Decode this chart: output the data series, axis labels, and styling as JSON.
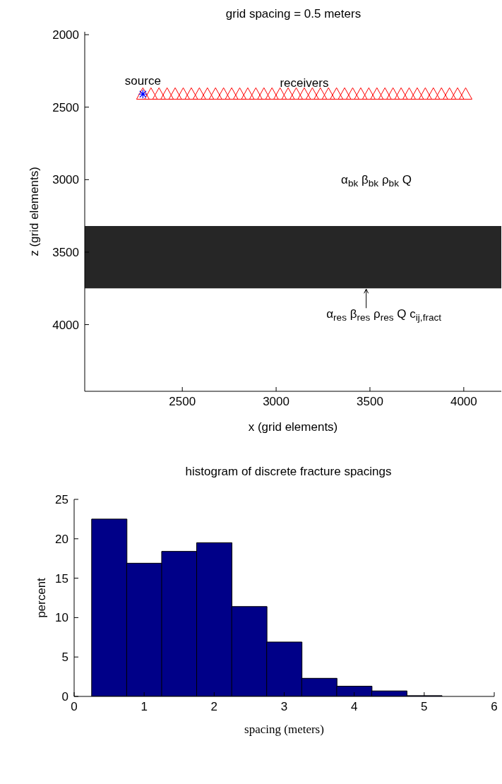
{
  "chart_data": [
    {
      "type": "scatter",
      "title": "grid spacing = 0.5 meters",
      "xlabel": "x (grid elements)",
      "ylabel": "z (grid elements)",
      "xlim": [
        1980,
        4200
      ],
      "xticks": [
        2500,
        3000,
        3500,
        4000
      ],
      "ylim": [
        4460,
        1980
      ],
      "yticks": [
        2000,
        2500,
        3000,
        3500,
        4000
      ],
      "series": [
        {
          "type": "scatter",
          "name": "receivers",
          "color": "#ff0000",
          "marker": "triangle",
          "x": [
            2290,
            2333,
            2376,
            2419,
            2462,
            2505,
            2548,
            2591,
            2634,
            2677,
            2720,
            2763,
            2806,
            2849,
            2892,
            2935,
            2978,
            3021,
            3064,
            3107,
            3150,
            3193,
            3236,
            3279,
            3322,
            3365,
            3408,
            3451,
            3494,
            3537,
            3580,
            3623,
            3666,
            3709,
            3752,
            3795,
            3838,
            3881,
            3924,
            3967,
            4010
          ],
          "values": [
            2410,
            2410,
            2410,
            2410,
            2410,
            2410,
            2410,
            2410,
            2410,
            2410,
            2410,
            2410,
            2410,
            2410,
            2410,
            2410,
            2410,
            2410,
            2410,
            2410,
            2410,
            2410,
            2410,
            2410,
            2410,
            2410,
            2410,
            2410,
            2410,
            2410,
            2410,
            2410,
            2410,
            2410,
            2410,
            2410,
            2410,
            2410,
            2410,
            2410,
            2410
          ]
        },
        {
          "type": "scatter",
          "color": "#0000ff",
          "marker": "cross",
          "x": [
            2290
          ],
          "values": [
            2410
          ]
        }
      ],
      "bands": [
        {
          "axis": "y",
          "from": 3320,
          "to": 3750,
          "color": "#262626"
        }
      ],
      "annotations": [
        {
          "text": "source",
          "x": 2290,
          "y": 2410
        },
        "α$_{bk}$ β$_{bk}$ ρ$_{bk}$ Q",
        {
          "text": "α$_{res}$ β$_{res}$ ρ$_{res}$ Q  c$_{ij,fract}$",
          "x": 3480,
          "y": 3750
        }
      ]
    },
    {
      "type": "histogram",
      "title": "histogram of discrete fracture spacings",
      "xlabel": "spacing (meters)",
      "ylabel": "percent",
      "color": "#000088",
      "bins": [
        0.25,
        0.75,
        1.25,
        1.75,
        2.25,
        2.75,
        3.25,
        3.75,
        4.25,
        4.75,
        5.25
      ],
      "values": [
        22.5,
        16.9,
        18.4,
        19.5,
        11.4,
        6.9,
        2.3,
        1.3,
        0.7,
        0.1
      ],
      "xlim": [
        0,
        6
      ],
      "xticks": [
        0,
        1,
        2,
        3,
        4,
        5,
        6
      ],
      "ylim": [
        0,
        25
      ],
      "yticks": [
        0,
        5,
        10,
        15,
        20,
        25
      ]
    }
  ]
}
